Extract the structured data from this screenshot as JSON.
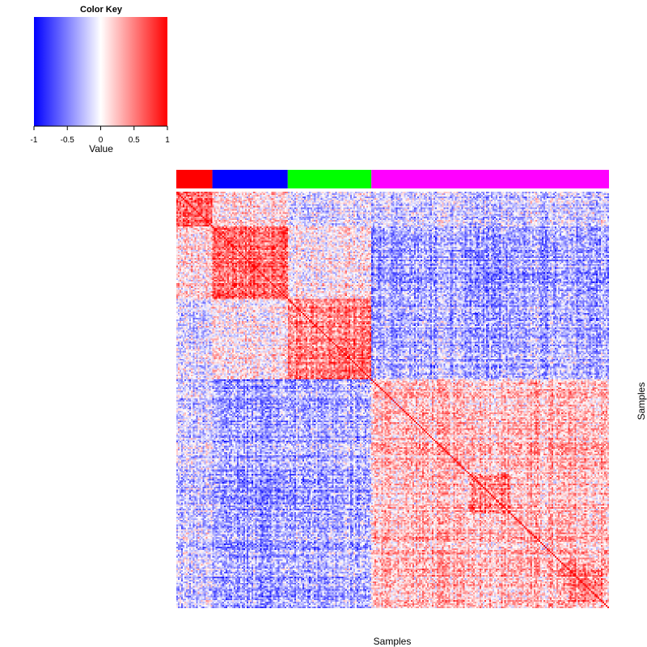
{
  "color_key": {
    "title": "Color Key",
    "xlabel": "Value",
    "ticks": [
      "-1",
      "-0.5",
      "0",
      "0.5",
      "1"
    ],
    "tick_values": [
      -1,
      -0.5,
      0,
      0.5,
      1
    ],
    "low_color": "#0000ff",
    "mid_color": "#ffffff",
    "high_color": "#ff0000"
  },
  "chart_data": {
    "type": "heatmap",
    "title": "",
    "xlabel": "Samples",
    "ylabel": "Samples",
    "value_range": [
      -1,
      1
    ],
    "n_samples": 264,
    "diagonal_value": 1,
    "groups": [
      {
        "color": "#ff0000",
        "size": 22,
        "within_mean": 0.55
      },
      {
        "color": "#0000ff",
        "size": 46,
        "within_mean": 0.6
      },
      {
        "color": "#00ff00",
        "size": 51,
        "within_mean": 0.5
      },
      {
        "color": "#ff00ff",
        "size": 145,
        "within_mean": 0.25
      }
    ],
    "between_group_mean": [
      [
        0.55,
        0.1,
        -0.15,
        -0.2
      ],
      [
        0.1,
        0.6,
        0.05,
        -0.35
      ],
      [
        -0.15,
        0.05,
        0.5,
        -0.3
      ],
      [
        -0.2,
        -0.35,
        -0.3,
        0.25
      ]
    ],
    "sub_blocks": [
      {
        "group": 3,
        "start": 60,
        "size": 25,
        "within_mean": 0.55
      },
      {
        "group": 3,
        "start": 121,
        "size": 20,
        "within_mean": 0.55
      }
    ],
    "grid": false,
    "legend": "top-left"
  }
}
